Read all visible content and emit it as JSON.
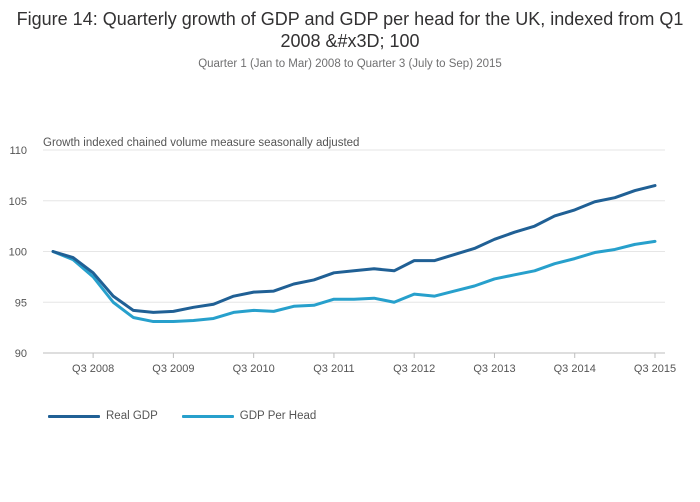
{
  "chart_data": {
    "type": "line",
    "title": "Figure 14: Quarterly growth of GDP and GDP per head for the UK, indexed from Q1 2008 &#x3D; 100",
    "subtitle": "Quarter 1 (Jan to Mar) 2008 to Quarter 3 (July to Sep) 2015",
    "ylabel": "Growth indexed chained volume measure seasonally adjusted",
    "xlabel": "",
    "ylim": [
      90,
      110
    ],
    "yticks": [
      90,
      95,
      100,
      105,
      110
    ],
    "x": [
      "Q1 2008",
      "Q2 2008",
      "Q3 2008",
      "Q4 2008",
      "Q1 2009",
      "Q2 2009",
      "Q3 2009",
      "Q4 2009",
      "Q1 2010",
      "Q2 2010",
      "Q3 2010",
      "Q4 2010",
      "Q1 2011",
      "Q2 2011",
      "Q3 2011",
      "Q4 2011",
      "Q1 2012",
      "Q2 2012",
      "Q3 2012",
      "Q4 2012",
      "Q1 2013",
      "Q2 2013",
      "Q3 2013",
      "Q4 2013",
      "Q1 2014",
      "Q2 2014",
      "Q3 2014",
      "Q4 2014",
      "Q1 2015",
      "Q2 2015",
      "Q3 2015"
    ],
    "xtick_labels": [
      "Q3 2008",
      "Q3 2009",
      "Q3 2010",
      "Q3 2011",
      "Q3 2012",
      "Q3 2013",
      "Q3 2014",
      "Q3 2015"
    ],
    "xtick_indices": [
      2,
      6,
      10,
      14,
      18,
      22,
      26,
      30
    ],
    "series": [
      {
        "name": "Real GDP",
        "color": "#206095",
        "values": [
          100.0,
          99.4,
          97.9,
          95.6,
          94.2,
          94.0,
          94.1,
          94.5,
          94.8,
          95.6,
          96.0,
          96.1,
          96.8,
          97.2,
          97.9,
          98.1,
          98.3,
          98.1,
          99.1,
          99.1,
          99.7,
          100.3,
          101.2,
          101.9,
          102.5,
          103.5,
          104.1,
          104.9,
          105.3,
          106.0,
          106.5
        ]
      },
      {
        "name": "GDP Per Head",
        "color": "#27A0CC",
        "values": [
          100.0,
          99.2,
          97.5,
          95.0,
          93.5,
          93.1,
          93.1,
          93.2,
          93.4,
          94.0,
          94.2,
          94.1,
          94.6,
          94.7,
          95.3,
          95.3,
          95.4,
          95.0,
          95.8,
          95.6,
          96.1,
          96.6,
          97.3,
          97.7,
          98.1,
          98.8,
          99.3,
          99.9,
          100.2,
          100.7,
          101.0
        ]
      }
    ],
    "legend_position": "bottom-left",
    "grid": true
  }
}
